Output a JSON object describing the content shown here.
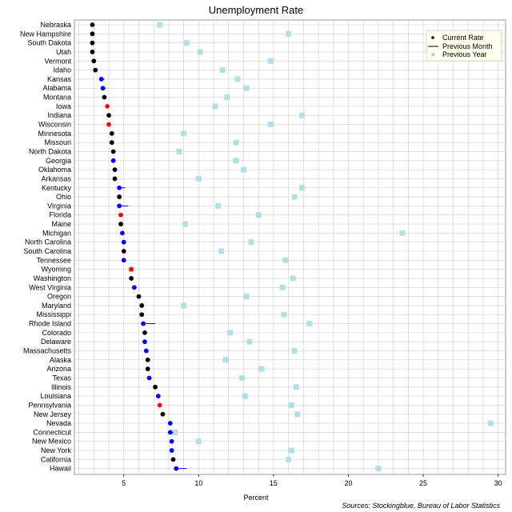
{
  "chart_data": {
    "type": "scatter",
    "title": "Unemployment Rate",
    "xlabel": "Percent",
    "ylabel": "",
    "xlim": [
      1.7,
      30.5
    ],
    "xticks": [
      5,
      10,
      15,
      20,
      25,
      30
    ],
    "grid": true,
    "legend": {
      "placement": "top-right",
      "items": [
        {
          "label": "Current Rate",
          "marker": "dot"
        },
        {
          "label": "Previous Month",
          "marker": "line"
        },
        {
          "label": "Previous Year",
          "marker": "square"
        }
      ]
    },
    "source": "Sources: Stockingblue, Bureau of Labor Statistics",
    "colors": {
      "up": "#ff0000",
      "down": "#0000ff",
      "same": "#000000",
      "year": "#b0dfe6",
      "grid": "#cccccc"
    },
    "categories": [
      "Nebraska",
      "New Hampshire",
      "South Dakota",
      "Utah",
      "Vermont",
      "Idaho",
      "Kansas",
      "Alabama",
      "Montana",
      "Iowa",
      "Indiana",
      "Wisconsin",
      "Minnesota",
      "Missouri",
      "North Dakota",
      "Georgia",
      "Oklahoma",
      "Arkansas",
      "Kentucky",
      "Ohio",
      "Virginia",
      "Florida",
      "Maine",
      "Michigan",
      "North Carolina",
      "South Carolina",
      "Tennessee",
      "Wyoming",
      "Washington",
      "West Virginia",
      "Oregon",
      "Maryland",
      "Mississippi",
      "Rhode Island",
      "Colorado",
      "Delaware",
      "Massachusetts",
      "Alaska",
      "Arizona",
      "Texas",
      "Illinois",
      "Louisiana",
      "Pennsylvania",
      "New Jersey",
      "Nevada",
      "Connecticut",
      "New Mexico",
      "New York",
      "California",
      "Hawaii"
    ],
    "series": [
      {
        "name": "Current Rate",
        "values": [
          2.9,
          2.9,
          2.9,
          2.9,
          3.0,
          3.1,
          3.5,
          3.6,
          3.7,
          3.9,
          4.0,
          4.0,
          4.2,
          4.2,
          4.3,
          4.3,
          4.4,
          4.4,
          4.7,
          4.7,
          4.7,
          4.8,
          4.8,
          4.9,
          5.0,
          5.0,
          5.0,
          5.5,
          5.5,
          5.7,
          6.0,
          6.2,
          6.2,
          6.3,
          6.4,
          6.4,
          6.5,
          6.6,
          6.6,
          6.7,
          7.1,
          7.3,
          7.4,
          7.6,
          8.1,
          8.1,
          8.2,
          8.2,
          8.3,
          8.5
        ]
      },
      {
        "name": "Previous Month",
        "values": [
          2.9,
          2.9,
          2.9,
          2.9,
          3.0,
          3.1,
          3.7,
          3.8,
          3.7,
          3.8,
          4.0,
          3.9,
          4.2,
          4.2,
          4.3,
          4.4,
          4.4,
          4.4,
          5.1,
          4.7,
          5.3,
          4.7,
          4.8,
          5.0,
          5.1,
          5.0,
          5.1,
          5.4,
          5.5,
          5.8,
          6.0,
          6.2,
          6.2,
          7.1,
          6.4,
          6.5,
          6.6,
          6.6,
          6.6,
          6.8,
          7.1,
          7.4,
          7.3,
          7.6,
          8.2,
          8.3,
          8.3,
          8.3,
          8.3,
          9.2
        ]
      },
      {
        "name": "Previous Year",
        "values": [
          7.4,
          16.0,
          9.2,
          10.1,
          14.8,
          11.6,
          12.6,
          13.2,
          11.9,
          11.1,
          16.9,
          14.8,
          9.0,
          12.5,
          8.7,
          12.5,
          13.0,
          10.0,
          16.9,
          16.4,
          11.3,
          14.0,
          9.1,
          23.6,
          13.5,
          11.5,
          15.8,
          5.5,
          16.3,
          15.6,
          13.2,
          9.0,
          15.7,
          17.4,
          12.1,
          13.4,
          16.4,
          11.8,
          14.2,
          12.9,
          16.5,
          13.1,
          16.2,
          16.6,
          29.5,
          8.4,
          10.0,
          16.2,
          16.0,
          22.0
        ]
      }
    ]
  }
}
